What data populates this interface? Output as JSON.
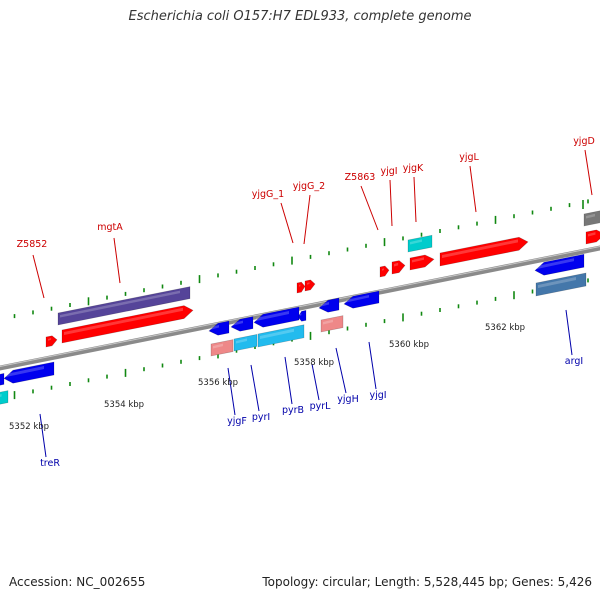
{
  "title": "Escherichia coli O157:H7 EDL933, complete genome",
  "footer": {
    "accession": "Accession: NC_002655",
    "summary": "Topology: circular; Length: 5,528,445 bp; Genes: 5,426"
  },
  "colors": {
    "forward_gene": "#ff0000",
    "reverse_gene": "#0000ee",
    "forward_label": "#cc0000",
    "reverse_label": "#0000aa",
    "cyan": "#00cccc",
    "light_blue": "#22bbee",
    "pink": "#ee8888",
    "purple": "#554499",
    "steel_blue": "#4477aa",
    "grey": "#777777",
    "backbone": "#8a8a8a",
    "tick": "#118811"
  },
  "scale_labels": [
    "5352 kbp",
    "5354 kbp",
    "5356 kbp",
    "5358 kbp",
    "5360 kbp",
    "5362 kbp"
  ],
  "forward_labels": [
    "Z5852",
    "mgtA",
    "yjgG_1",
    "yjgG_2",
    "Z5863",
    "yjgI",
    "yjgK",
    "yjgL",
    "yjgD"
  ],
  "reverse_labels": [
    "treR",
    "yjgF",
    "pyrI",
    "pyrB",
    "pyrL",
    "yjgH",
    "yjgI",
    "argI"
  ]
}
